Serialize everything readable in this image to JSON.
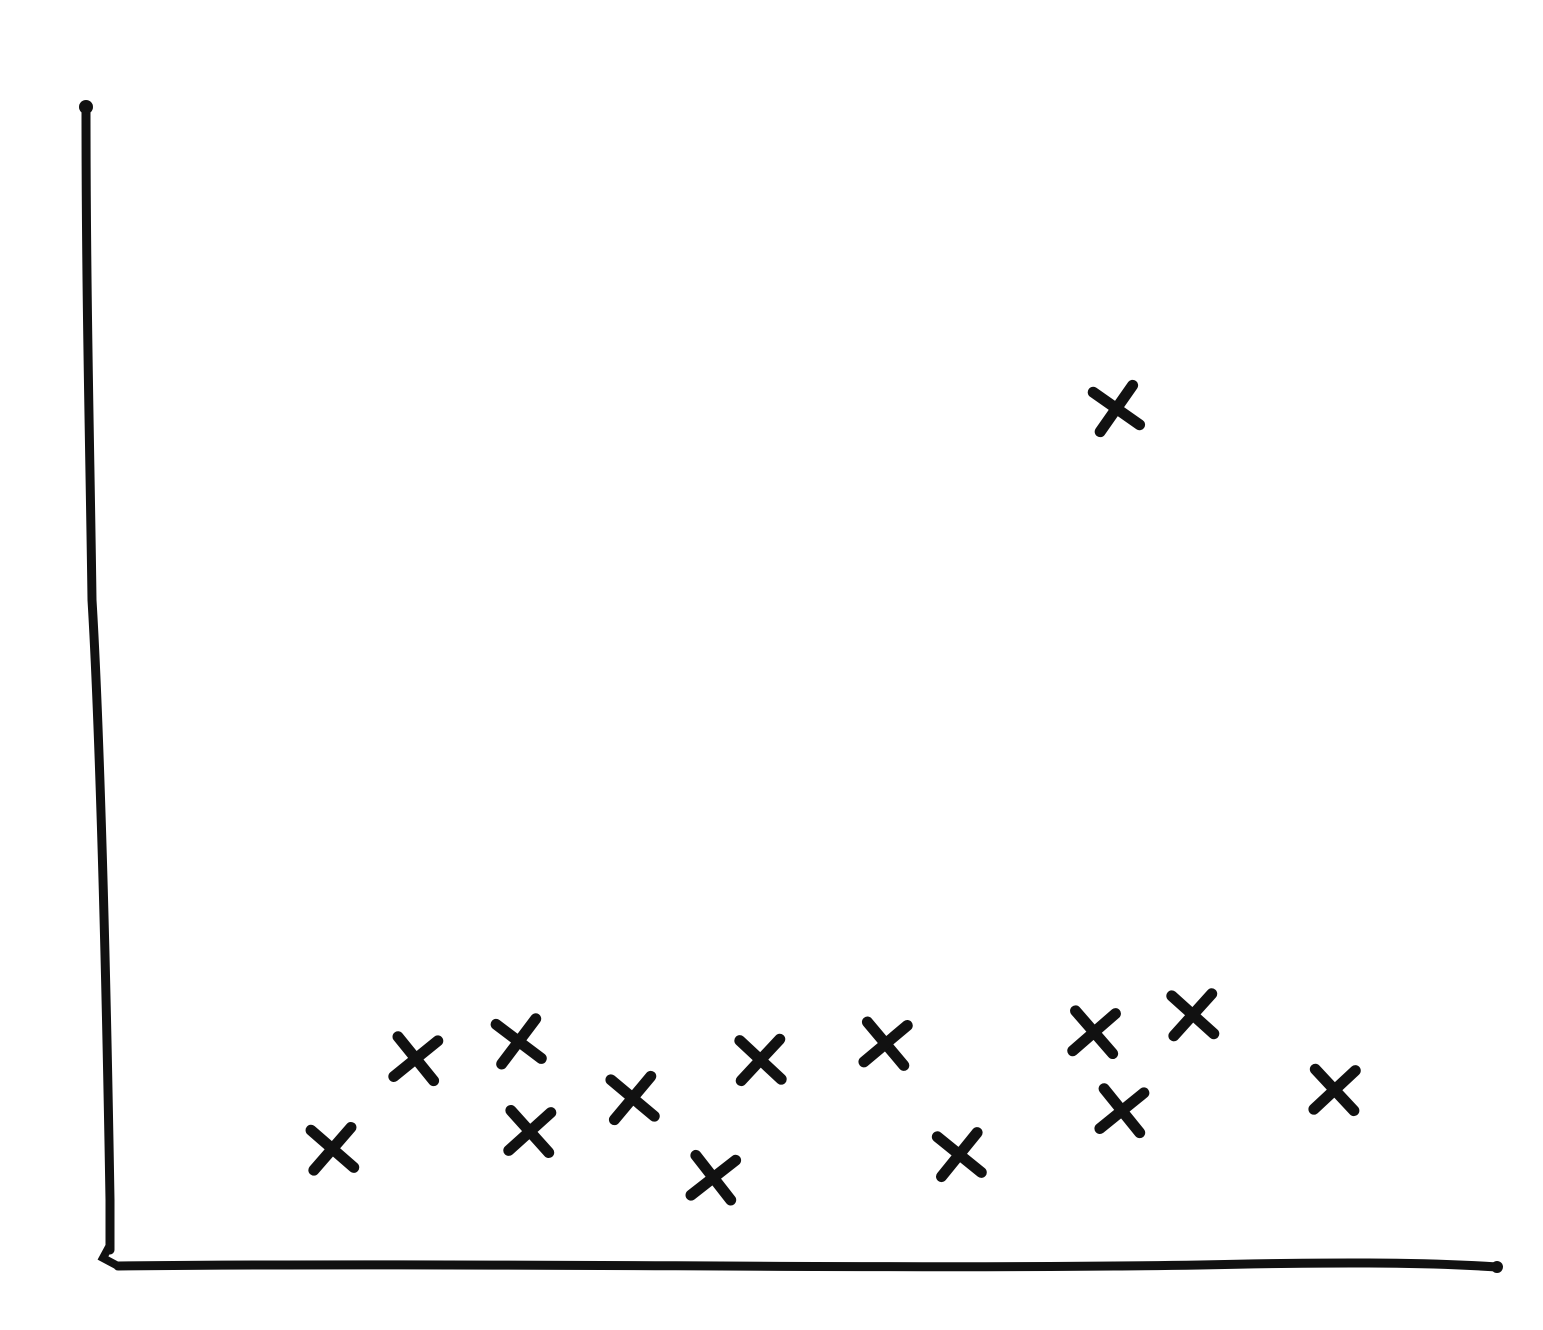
{
  "chart_data": {
    "type": "scatter",
    "title": "",
    "xlabel": "",
    "ylabel": "",
    "grid": false,
    "legend": "none",
    "xlim": [
      0,
      100
    ],
    "ylim": [
      0,
      100
    ],
    "colors": {
      "ink": "#111111",
      "background": "#ffffff"
    },
    "series": [
      {
        "points": [
          {
            "x": 16.0,
            "y": 9.8
          },
          {
            "x": 22.0,
            "y": 17.6
          },
          {
            "x": 29.4,
            "y": 19.1
          },
          {
            "x": 30.2,
            "y": 11.3
          },
          {
            "x": 37.6,
            "y": 14.2
          },
          {
            "x": 43.4,
            "y": 7.3
          },
          {
            "x": 46.8,
            "y": 17.5
          },
          {
            "x": 55.8,
            "y": 18.9
          },
          {
            "x": 61.1,
            "y": 9.3
          },
          {
            "x": 70.8,
            "y": 19.9
          },
          {
            "x": 72.4,
            "y": 73.9
          },
          {
            "x": 72.8,
            "y": 13.1
          },
          {
            "x": 77.9,
            "y": 21.4
          },
          {
            "x": 88.1,
            "y": 14.9
          }
        ]
      }
    ]
  }
}
